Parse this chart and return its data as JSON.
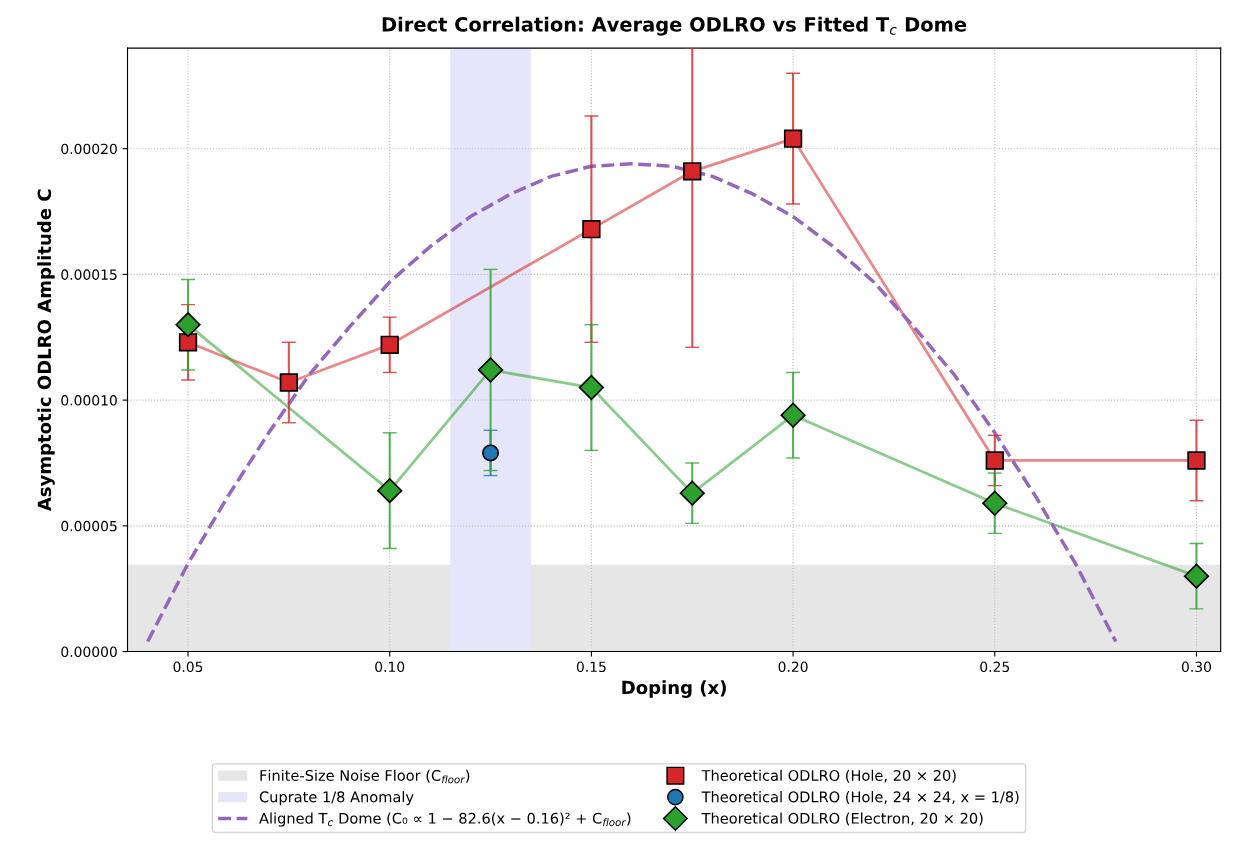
{
  "chart_data": {
    "type": "line",
    "title": "Direct Correlation: Average ODLRO vs Fitted T$_{c}$ Dome",
    "xlabel": "Doping (x)",
    "ylabel": "Asymptotic ODLRO Amplitude C",
    "xlim": [
      0.035,
      0.306
    ],
    "ylim": [
      0,
      0.00024
    ],
    "xticks": [
      {
        "value": 0.05,
        "label": "0.05"
      },
      {
        "value": 0.1,
        "label": "0.10"
      },
      {
        "value": 0.15,
        "label": "0.15"
      },
      {
        "value": 0.2,
        "label": "0.20"
      },
      {
        "value": 0.25,
        "label": "0.25"
      },
      {
        "value": 0.3,
        "label": "0.30"
      }
    ],
    "yticks": [
      {
        "value": 0,
        "label": "0.00000"
      },
      {
        "value": 5e-05,
        "label": "0.00005"
      },
      {
        "value": 0.0001,
        "label": "0.00010"
      },
      {
        "value": 0.00015,
        "label": "0.00015"
      },
      {
        "value": 0.0002,
        "label": "0.00020"
      }
    ],
    "grid": true,
    "legend": "bottom",
    "bands": [
      {
        "axis": "y",
        "from": 0,
        "to": 3.45e-05,
        "label": "Finite-Size Noise Floor (C$_{floor}$)",
        "color": "#e6e6e6"
      },
      {
        "axis": "x",
        "from": 0.115,
        "to": 0.135,
        "label": "Cuprate 1/8 Anomaly",
        "color": "#e6e6fa"
      }
    ],
    "series": [
      {
        "name": "Aligned T$_{c}$ Dome (C₀ ∝ 1 − 82.6(x − 0.16)² + C$_{floor}$)",
        "color": "#9467bd",
        "line_style": "dashed",
        "marker": "none",
        "x": [
          0.04,
          0.05,
          0.06,
          0.07,
          0.08,
          0.09,
          0.1,
          0.11,
          0.12,
          0.13,
          0.14,
          0.15,
          0.16,
          0.17,
          0.18,
          0.19,
          0.2,
          0.21,
          0.22,
          0.23,
          0.24,
          0.25,
          0.26,
          0.27,
          0.28
        ],
        "values": [
          4e-06,
          3.5e-05,
          6.2e-05,
          8.7e-05,
          0.00011,
          0.000129,
          0.000147,
          0.000161,
          0.000173,
          0.000182,
          0.000189,
          0.000193,
          0.000194,
          0.000193,
          0.000189,
          0.000182,
          0.000173,
          0.000161,
          0.000147,
          0.000129,
          0.00011,
          8.7e-05,
          6.2e-05,
          3.5e-05,
          4e-06
        ]
      },
      {
        "name": "Theoretical ODLRO (Hole, 20 × 20)",
        "color": "#d62728",
        "marker": "square",
        "line_style": "solid",
        "x": [
          0.05,
          0.075,
          0.1,
          0.15,
          0.175,
          0.2,
          0.25,
          0.3
        ],
        "values": [
          0.000123,
          0.000107,
          0.000122,
          0.000168,
          0.000191,
          0.000204,
          7.6e-05,
          7.6e-05
        ],
        "errors": [
          1.5e-05,
          1.6e-05,
          1.1e-05,
          4.5e-05,
          [
            0.000121,
            0.00024
          ],
          2.6e-05,
          1e-05,
          1.6e-05
        ]
      },
      {
        "name": "Theoretical ODLRO (Hole, 24 × 24, x = 1/8)",
        "type": "scatter",
        "color": "#1f77b4",
        "marker": "circle",
        "x": [
          0.125
        ],
        "values": [
          7.9e-05
        ],
        "errors": [
          9e-06
        ]
      },
      {
        "name": "Theoretical ODLRO (Electron, 20 × 20)",
        "color": "#2ca02c",
        "marker": "diamond",
        "line_style": "solid",
        "x": [
          0.05,
          0.1,
          0.125,
          0.15,
          0.175,
          0.2,
          0.25,
          0.3
        ],
        "values": [
          0.00013,
          6.4e-05,
          0.000112,
          0.000105,
          6.3e-05,
          9.4e-05,
          5.9e-05,
          3e-05
        ],
        "errors": [
          1.8e-05,
          2.3e-05,
          4e-05,
          2.5e-05,
          1.2e-05,
          1.7e-05,
          1.2e-05,
          1.3e-05
        ]
      }
    ]
  }
}
